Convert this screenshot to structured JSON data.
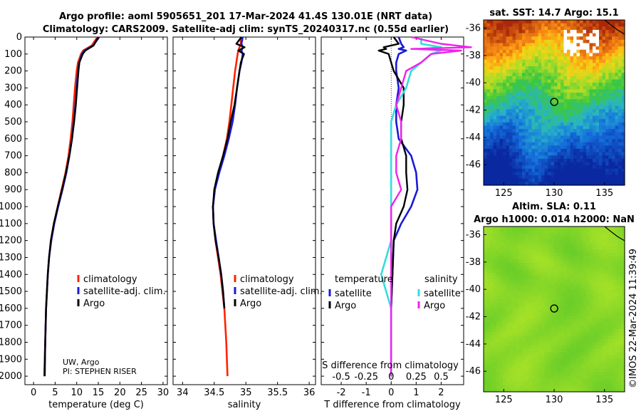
{
  "header": {
    "line1": "Argo profile: aoml 5905651_201 17-Mar-2024 41.4S 130.01E (NRT data)",
    "line2": "Climatology: CARS2009. Satellite-adj clim: synTS_20240317.nc (0.55d earlier)"
  },
  "colors": {
    "climatology": "#ff2200",
    "satellite": "#1a1ad8",
    "argo": "#000000",
    "s_satellite": "#33dddd",
    "s_argo": "#ee22ee"
  },
  "chart_data": [
    {
      "type": "line",
      "id": "temperature",
      "xlabel": "temperature (deg C)",
      "ylabel": "depth",
      "xlim": [
        -2,
        31
      ],
      "ylim": [
        2050,
        0
      ],
      "x_ticks": [
        "0",
        "5",
        "10",
        "15",
        "20",
        "25",
        "30"
      ],
      "x_tick_values": [
        0,
        5,
        10,
        15,
        20,
        25,
        30
      ],
      "y_ticks": [
        "0",
        "100",
        "200",
        "300",
        "400",
        "500",
        "600",
        "700",
        "800",
        "900",
        "1000",
        "1100",
        "1200",
        "1300",
        "1400",
        "1500",
        "1600",
        "1700",
        "1800",
        "1900",
        "2000"
      ],
      "legend": [
        "climatology",
        "satellite-adj. clim.",
        "Argo"
      ],
      "note_lines": [
        "UW, Argo",
        "PI: STEPHEN RISER"
      ],
      "depth": [
        0,
        50,
        80,
        100,
        150,
        200,
        300,
        400,
        500,
        600,
        700,
        800,
        900,
        1000,
        1100,
        1200,
        1300,
        1400,
        1600,
        1800,
        2000
      ],
      "series": [
        {
          "name": "climatology",
          "values": [
            14.8,
            13.5,
            11.5,
            11.0,
            10.3,
            10.0,
            9.6,
            9.3,
            9.0,
            8.6,
            8.1,
            7.4,
            6.5,
            5.6,
            4.7,
            4.0,
            3.6,
            3.3,
            2.9,
            2.7,
            2.5
          ]
        },
        {
          "name": "satellite-adj. clim.",
          "values": [
            15.2,
            13.8,
            11.8,
            11.2,
            10.6,
            10.3,
            10.0,
            9.7,
            9.3,
            8.9,
            8.3,
            7.6,
            6.7,
            5.7,
            4.8,
            4.1,
            3.6,
            3.3,
            2.9,
            2.7,
            2.5
          ]
        },
        {
          "name": "Argo",
          "values": [
            15.0,
            13.9,
            12.0,
            11.4,
            10.6,
            10.4,
            10.1,
            9.8,
            9.4,
            8.9,
            8.3,
            7.5,
            6.6,
            5.6,
            4.7,
            4.0,
            3.6,
            3.3,
            2.9,
            2.7,
            2.6
          ]
        }
      ]
    },
    {
      "type": "line",
      "id": "salinity",
      "xlabel": "salinity",
      "xlim": [
        33.85,
        36.1
      ],
      "ylim": [
        2050,
        0
      ],
      "x_ticks": [
        "34",
        "34.5",
        "35",
        "35.5",
        "36"
      ],
      "x_tick_values": [
        34,
        34.5,
        35,
        35.5,
        36
      ],
      "legend": [
        "climatology",
        "satellite-adj. clim.",
        "Argo"
      ],
      "depth": [
        0,
        40,
        60,
        80,
        100,
        150,
        200,
        300,
        400,
        500,
        600,
        700,
        800,
        900,
        1000,
        1100,
        1200,
        1300,
        1400,
        1500,
        1600,
        1800,
        2000
      ],
      "series": [
        {
          "name": "climatology",
          "values": [
            34.92,
            34.92,
            34.9,
            34.88,
            34.87,
            34.85,
            34.83,
            34.8,
            34.77,
            34.74,
            34.7,
            34.64,
            34.57,
            34.51,
            34.48,
            34.49,
            34.52,
            34.56,
            34.6,
            34.63,
            34.66,
            34.69,
            34.71
          ]
        },
        {
          "name": "satellite-adj. clim.",
          "values": [
            34.95,
            34.93,
            34.95,
            34.93,
            34.95,
            34.93,
            34.9,
            34.86,
            34.83,
            34.79,
            34.73,
            34.66,
            34.58,
            34.51,
            34.48,
            34.49,
            34.53,
            34.57,
            34.61,
            34.64,
            34.66
          ],
          "depth_cut": 21
        },
        {
          "name": "Argo",
          "values": [
            34.93,
            34.85,
            34.98,
            34.88,
            34.97,
            34.92,
            34.9,
            34.86,
            34.82,
            34.76,
            34.71,
            34.64,
            34.56,
            34.5,
            34.48,
            34.49,
            34.52,
            34.57,
            34.61,
            34.64,
            34.66
          ],
          "depth_cut": 21
        }
      ]
    },
    {
      "type": "line",
      "id": "differences",
      "xlabel": "T difference from climatology",
      "top_label": "S difference from climatology",
      "xlim": [
        -2.8,
        2.9
      ],
      "ylim": [
        2050,
        0
      ],
      "x_ticks": [
        "-2",
        "-1",
        "0",
        "1",
        "2"
      ],
      "x_tick_values": [
        -2,
        -1,
        0,
        1,
        2
      ],
      "s_ticks": [
        "-0.5",
        "-0.25",
        "0",
        "0.25",
        "0.5"
      ],
      "s_tick_values": [
        -0.5,
        -0.25,
        0,
        0.25,
        0.5
      ],
      "legend_t_title": "temperature",
      "legend_s_title": "salinity",
      "legend_t": [
        "satellite",
        "Argo"
      ],
      "legend_s": [
        "satellite",
        "Argo"
      ],
      "depth": [
        0,
        40,
        60,
        70,
        80,
        100,
        150,
        200,
        300,
        400,
        500,
        600,
        700,
        800,
        900,
        1000,
        1100,
        1200,
        1400,
        1600,
        1800,
        2000
      ],
      "series": [
        {
          "name": "T satellite",
          "values": [
            0.3,
            0.4,
            0.5,
            0.3,
            0.6,
            0.3,
            0.2,
            0.2,
            0.3,
            0.2,
            0.2,
            0.3,
            0.8,
            1.0,
            1.05,
            0.8,
            0.4,
            0.1,
            0.05,
            0.0,
            0.0,
            0.0
          ]
        },
        {
          "name": "T Argo",
          "values": [
            0.1,
            0.3,
            -0.3,
            -0.2,
            -0.5,
            -0.1,
            0.0,
            0.1,
            0.5,
            0.5,
            0.4,
            0.4,
            0.6,
            0.6,
            0.65,
            0.5,
            0.2,
            0.1,
            0.05,
            0.0,
            0.0,
            0.0
          ]
        },
        {
          "name": "S satellite",
          "values": [
            0.3,
            0.3,
            0.5,
            0.3,
            0.5,
            0.4,
            0.3,
            0.2,
            0.15,
            0.05,
            0.0,
            0.0,
            0.0,
            0.0,
            0.0,
            0.0,
            0.0,
            0.0,
            -0.1,
            0.0,
            0.0,
            0.0
          ]
        },
        {
          "name": "S Argo",
          "values": [
            0.2,
            0.5,
            0.8,
            0.2,
            0.7,
            0.4,
            0.3,
            0.15,
            0.1,
            0.05,
            0.1,
            0.1,
            0.05,
            0.05,
            0.1,
            0.0,
            0.0,
            0.0,
            0.0,
            0.0,
            0.0,
            0.0
          ]
        }
      ]
    }
  ],
  "maps": {
    "sst": {
      "title": "sat. SST: 14.7 Argo: 15.1",
      "x_ticks": [
        "125",
        "130",
        "135"
      ],
      "x_tick_values": [
        125,
        130,
        135
      ],
      "y_ticks": [
        "-36",
        "-38",
        "-40",
        "-42",
        "-44",
        "-46"
      ],
      "y_tick_values": [
        -36,
        -38,
        -40,
        -42,
        -44,
        -46
      ],
      "lon_range": [
        123,
        137
      ],
      "lat_range": [
        -47.5,
        -35.4
      ],
      "float_lon": 130.01,
      "float_lat": -41.4
    },
    "sla": {
      "title1": "Altim. SLA: 0.11",
      "title2": "Argo h1000: 0.014 h2000: NaN",
      "x_ticks": [
        "125",
        "130",
        "135"
      ],
      "x_tick_values": [
        125,
        130,
        135
      ],
      "y_ticks": [
        "-36",
        "-38",
        "-40",
        "-42",
        "-44",
        "-46"
      ],
      "y_tick_values": [
        -36,
        -38,
        -40,
        -42,
        -44,
        -46
      ],
      "lon_range": [
        123,
        137
      ],
      "lat_range": [
        -47.5,
        -35.4
      ],
      "float_lon": 130.01,
      "float_lat": -41.4
    }
  },
  "watermark": "©IMOS 22-Mar-2024 11:39:49"
}
